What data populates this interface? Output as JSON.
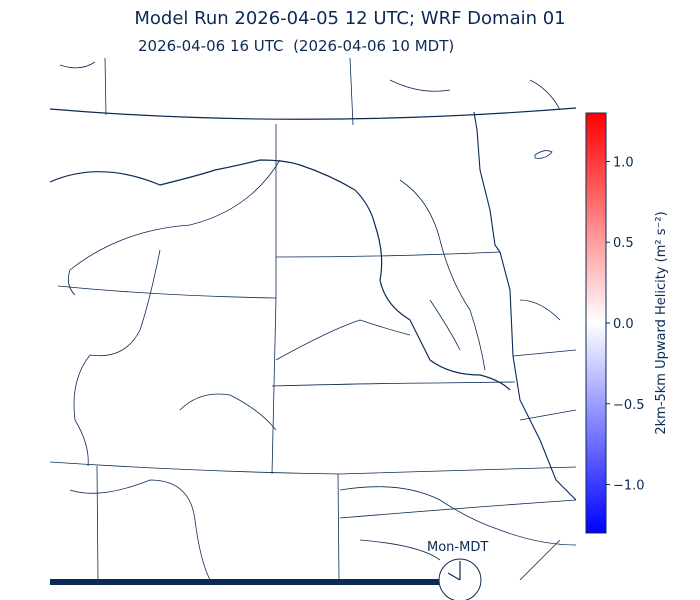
{
  "header": {
    "title": "Model Run 2026-04-05 12 UTC; WRF Domain 01",
    "subtitle": "2026-04-06 16 UTC  (2026-04-06 10 MDT)"
  },
  "colorbar": {
    "label": "2km-5km Upward Helicity (m² s⁻²)",
    "range": [
      -1.3,
      1.3
    ],
    "colormap": "bwr",
    "colors": {
      "min": "#0000ff",
      "mid": "#ffffff",
      "max": "#ff0000"
    },
    "ticks": [
      {
        "value": 1.0,
        "label": "1.0"
      },
      {
        "value": 0.5,
        "label": "0.5"
      },
      {
        "value": 0.0,
        "label": "0.0"
      },
      {
        "value": -0.5,
        "label": "−0.5"
      },
      {
        "value": -1.0,
        "label": "−1.0"
      }
    ]
  },
  "timeline": {
    "timezone_label": "Mon-MDT",
    "clock_icon": "clock-icon",
    "clock_time": "10:00"
  },
  "map": {
    "line_color": "#0b2a55"
  }
}
